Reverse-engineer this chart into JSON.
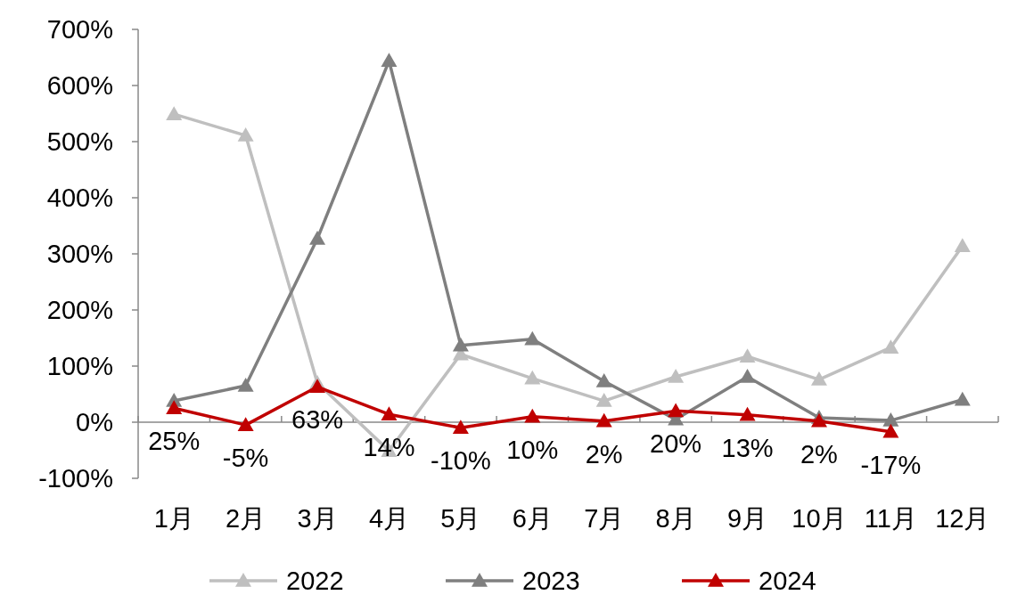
{
  "chart_data": {
    "type": "line",
    "categories": [
      "1月",
      "2月",
      "3月",
      "4月",
      "5月",
      "6月",
      "7月",
      "8月",
      "9月",
      "10月",
      "11月",
      "12月"
    ],
    "series": [
      {
        "name": "2022",
        "color": "#bfbfbf",
        "values": [
          549,
          511,
          70,
          -51,
          121,
          78,
          38,
          81,
          117,
          76,
          133,
          314
        ]
      },
      {
        "name": "2023",
        "color": "#7f7f7f",
        "values": [
          38,
          65,
          327,
          644,
          137,
          148,
          73,
          5,
          81,
          8,
          3,
          40
        ]
      },
      {
        "name": "2024",
        "color": "#c00000",
        "values": [
          25,
          -5,
          63,
          14,
          -10,
          10,
          2,
          20,
          13,
          2,
          -17,
          null
        ],
        "value_labels": [
          "25%",
          "-5%",
          "63%",
          "14%",
          "-10%",
          "10%",
          "2%",
          "20%",
          "13%",
          "2%",
          "-17%",
          null
        ]
      }
    ],
    "ylim": [
      -100,
      700
    ],
    "yticks": [
      {
        "value": -100,
        "label": "-100%"
      },
      {
        "value": 0,
        "label": "0%"
      },
      {
        "value": 100,
        "label": "100%"
      },
      {
        "value": 200,
        "label": "200%"
      },
      {
        "value": 300,
        "label": "300%"
      },
      {
        "value": 400,
        "label": "400%"
      },
      {
        "value": 500,
        "label": "500%"
      },
      {
        "value": 600,
        "label": "600%"
      },
      {
        "value": 700,
        "label": "700%"
      }
    ],
    "marker": "triangle",
    "line_style": "solid",
    "legend": "bottom"
  }
}
